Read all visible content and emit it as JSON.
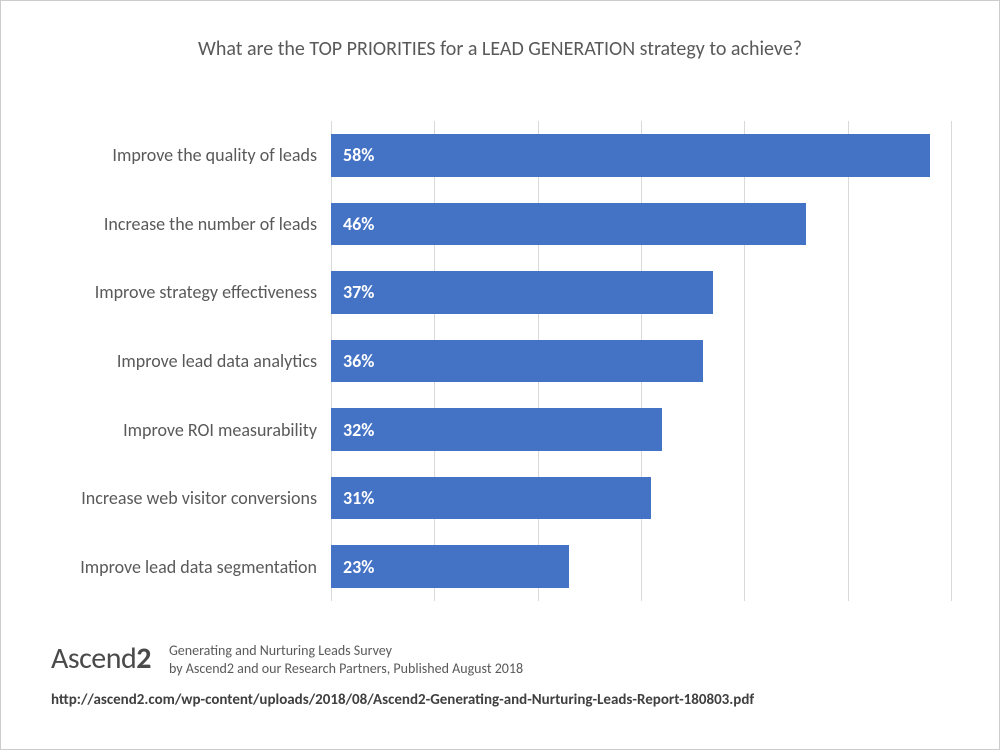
{
  "chart": {
    "type": "bar-horizontal",
    "title": "What are the TOP PRIORITIES for a LEAD GENERATION strategy to achieve?",
    "title_color": "#595959",
    "title_fontsize": 20,
    "background_color": "#ffffff",
    "bar_color": "#4472c4",
    "grid_color": "#d9d9d9",
    "value_text_color": "#ffffff",
    "label_color": "#595959",
    "label_fontsize": 18,
    "value_fontsize": 18,
    "xmax": 60,
    "xtick_step": 10,
    "bar_gap_ratio": 0.38,
    "bars": [
      {
        "label": "Improve the quality of leads",
        "value": 58,
        "display": "58%"
      },
      {
        "label": "Increase the number of leads",
        "value": 46,
        "display": "46%"
      },
      {
        "label": "Improve strategy effectiveness",
        "value": 37,
        "display": "37%"
      },
      {
        "label": "Improve lead data analytics",
        "value": 36,
        "display": "36%"
      },
      {
        "label": "Improve ROI measurability",
        "value": 32,
        "display": "32%"
      },
      {
        "label": "Increase web visitor conversions",
        "value": 31,
        "display": "31%"
      },
      {
        "label": "Improve lead data segmentation",
        "value": 23,
        "display": "23%"
      }
    ]
  },
  "footer": {
    "logo_text": "Ascend2",
    "logo_fontsize": 30,
    "footnote_line1": "Generating and Nurturing Leads Survey",
    "footnote_line2": "by Ascend2 and our Research Partners, Published August 2018",
    "footnote_fontsize": 14,
    "source_url": "http://ascend2.com/wp-content/uploads/2018/08/Ascend2-Generating-and-Nurturing-Leads-Report-180803.pdf",
    "source_fontsize": 15
  }
}
